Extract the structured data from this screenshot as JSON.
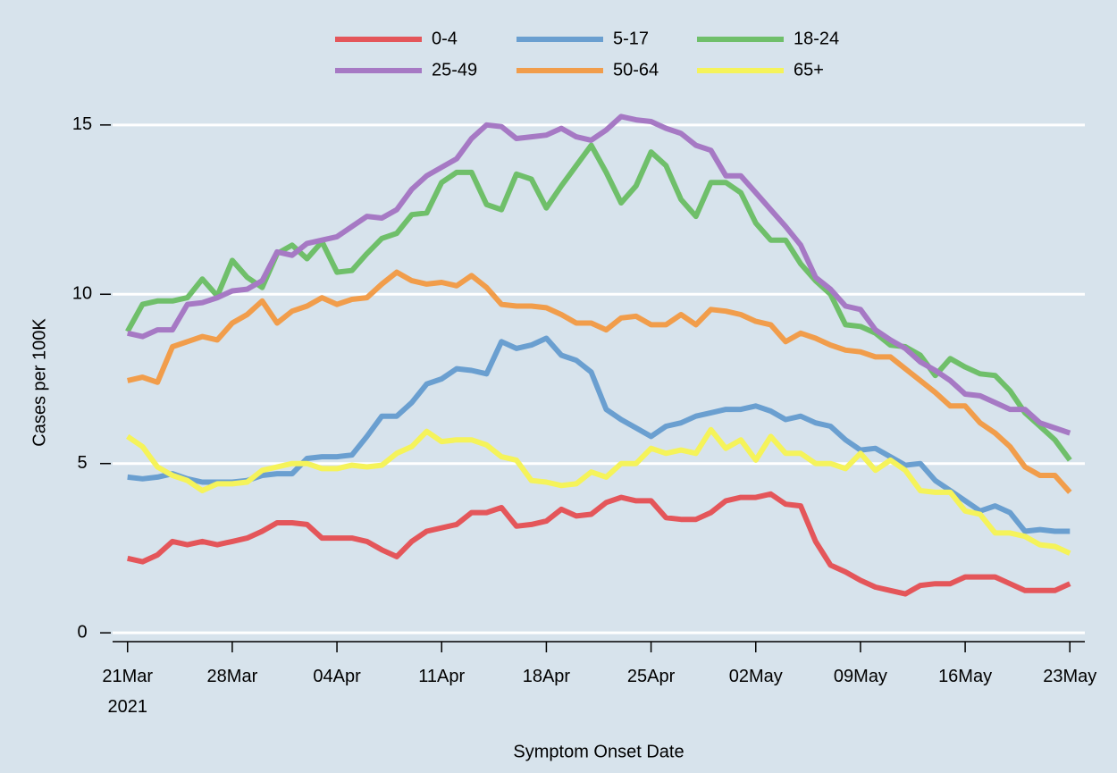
{
  "chart_data": {
    "type": "line",
    "x_label": "Symptom Onset Date",
    "y_label": "Cases per 100K",
    "x": [
      "2021-03-21",
      "2021-03-22",
      "2021-03-23",
      "2021-03-24",
      "2021-03-25",
      "2021-03-26",
      "2021-03-27",
      "2021-03-28",
      "2021-03-29",
      "2021-03-30",
      "2021-03-31",
      "2021-04-01",
      "2021-04-02",
      "2021-04-03",
      "2021-04-04",
      "2021-04-05",
      "2021-04-06",
      "2021-04-07",
      "2021-04-08",
      "2021-04-09",
      "2021-04-10",
      "2021-04-11",
      "2021-04-12",
      "2021-04-13",
      "2021-04-14",
      "2021-04-15",
      "2021-04-16",
      "2021-04-17",
      "2021-04-18",
      "2021-04-19",
      "2021-04-20",
      "2021-04-21",
      "2021-04-22",
      "2021-04-23",
      "2021-04-24",
      "2021-04-25",
      "2021-04-26",
      "2021-04-27",
      "2021-04-28",
      "2021-04-29",
      "2021-04-30",
      "2021-05-01",
      "2021-05-02",
      "2021-05-03",
      "2021-05-04",
      "2021-05-05",
      "2021-05-06",
      "2021-05-07",
      "2021-05-08",
      "2021-05-09",
      "2021-05-10",
      "2021-05-11",
      "2021-05-12",
      "2021-05-13",
      "2021-05-14",
      "2021-05-15",
      "2021-05-16",
      "2021-05-17",
      "2021-05-18",
      "2021-05-19",
      "2021-05-20",
      "2021-05-21",
      "2021-05-22",
      "2021-05-23"
    ],
    "series": [
      {
        "name": "0-4",
        "color": "#e4565a",
        "values": [
          2.2,
          2.1,
          2.3,
          2.7,
          2.6,
          2.7,
          2.6,
          2.7,
          2.8,
          3.0,
          3.25,
          3.25,
          3.2,
          2.8,
          2.8,
          2.8,
          2.7,
          2.45,
          2.25,
          2.7,
          3.0,
          3.1,
          3.2,
          3.55,
          3.55,
          3.7,
          3.15,
          3.2,
          3.3,
          3.65,
          3.45,
          3.5,
          3.85,
          4.0,
          3.9,
          3.9,
          3.4,
          3.35,
          3.35,
          3.55,
          3.9,
          4.0,
          4.0,
          4.1,
          3.8,
          3.75,
          2.7,
          2.0,
          1.8,
          1.55,
          1.35,
          1.25,
          1.15,
          1.4,
          1.45,
          1.45,
          1.65,
          1.65,
          1.65,
          1.45,
          1.25,
          1.25,
          1.25,
          1.45
        ]
      },
      {
        "name": "5-17",
        "color": "#6a9fd0",
        "values": [
          4.6,
          4.55,
          4.6,
          4.7,
          4.55,
          4.45,
          4.45,
          4.45,
          4.5,
          4.65,
          4.7,
          4.7,
          5.15,
          5.2,
          5.2,
          5.25,
          5.8,
          6.4,
          6.4,
          6.8,
          7.35,
          7.5,
          7.8,
          7.75,
          7.65,
          8.6,
          8.4,
          8.5,
          8.7,
          8.2,
          8.05,
          7.7,
          6.6,
          6.3,
          6.05,
          5.8,
          6.1,
          6.2,
          6.4,
          6.5,
          6.6,
          6.6,
          6.7,
          6.55,
          6.3,
          6.4,
          6.2,
          6.1,
          5.7,
          5.4,
          5.45,
          5.2,
          4.95,
          5.0,
          4.5,
          4.2,
          3.9,
          3.6,
          3.75,
          3.55,
          3.0,
          3.05,
          3.0,
          3.0
        ]
      },
      {
        "name": "18-24",
        "color": "#6fbf6a",
        "values": [
          8.9,
          9.7,
          9.8,
          9.8,
          9.9,
          10.45,
          9.95,
          11.0,
          10.5,
          10.2,
          11.2,
          11.45,
          11.05,
          11.55,
          10.65,
          10.7,
          11.2,
          11.65,
          11.8,
          12.35,
          12.4,
          13.3,
          13.6,
          13.6,
          12.65,
          12.5,
          13.55,
          13.4,
          12.55,
          13.2,
          13.8,
          14.4,
          13.6,
          12.7,
          13.2,
          14.2,
          13.8,
          12.8,
          12.3,
          13.3,
          13.3,
          13.0,
          12.1,
          11.6,
          11.6,
          10.9,
          10.4,
          10.0,
          9.1,
          9.05,
          8.85,
          8.5,
          8.45,
          8.2,
          7.6,
          8.1,
          7.85,
          7.65,
          7.6,
          7.15,
          6.5,
          6.1,
          5.7,
          5.1
        ]
      },
      {
        "name": "25-49",
        "color": "#a679c4",
        "values": [
          8.85,
          8.75,
          8.95,
          8.95,
          9.7,
          9.75,
          9.9,
          10.1,
          10.15,
          10.4,
          11.25,
          11.15,
          11.5,
          11.6,
          11.7,
          12.0,
          12.3,
          12.25,
          12.5,
          13.1,
          13.5,
          13.75,
          14.0,
          14.6,
          15.0,
          14.95,
          14.6,
          14.65,
          14.7,
          14.9,
          14.65,
          14.55,
          14.85,
          15.25,
          15.15,
          15.1,
          14.9,
          14.75,
          14.4,
          14.25,
          13.5,
          13.5,
          13.0,
          12.5,
          12.0,
          11.45,
          10.5,
          10.15,
          9.65,
          9.55,
          8.95,
          8.65,
          8.4,
          8.0,
          7.75,
          7.45,
          7.05,
          7.0,
          6.8,
          6.6,
          6.6,
          6.2,
          6.05,
          5.9
        ]
      },
      {
        "name": "50-64",
        "color": "#f19d4b",
        "values": [
          7.45,
          7.55,
          7.4,
          8.45,
          8.6,
          8.75,
          8.65,
          9.15,
          9.4,
          9.8,
          9.15,
          9.5,
          9.65,
          9.9,
          9.7,
          9.85,
          9.9,
          10.3,
          10.65,
          10.4,
          10.3,
          10.35,
          10.25,
          10.55,
          10.2,
          9.7,
          9.65,
          9.65,
          9.6,
          9.4,
          9.15,
          9.15,
          8.95,
          9.3,
          9.35,
          9.1,
          9.1,
          9.4,
          9.1,
          9.55,
          9.5,
          9.4,
          9.2,
          9.1,
          8.6,
          8.85,
          8.7,
          8.5,
          8.35,
          8.3,
          8.15,
          8.15,
          7.8,
          7.45,
          7.1,
          6.7,
          6.7,
          6.2,
          5.9,
          5.5,
          4.9,
          4.65,
          4.65,
          4.15
        ]
      },
      {
        "name": "65+",
        "color": "#f5f35a",
        "values": [
          5.8,
          5.5,
          4.9,
          4.65,
          4.5,
          4.2,
          4.4,
          4.4,
          4.45,
          4.8,
          4.9,
          5.0,
          5.0,
          4.85,
          4.85,
          4.95,
          4.9,
          4.95,
          5.3,
          5.5,
          5.95,
          5.65,
          5.7,
          5.7,
          5.55,
          5.2,
          5.1,
          4.5,
          4.45,
          4.35,
          4.4,
          4.75,
          4.6,
          5.0,
          5.0,
          5.45,
          5.3,
          5.4,
          5.3,
          6.0,
          5.45,
          5.7,
          5.1,
          5.8,
          5.3,
          5.3,
          5.0,
          5.0,
          4.85,
          5.3,
          4.8,
          5.1,
          4.8,
          4.2,
          4.15,
          4.15,
          3.6,
          3.5,
          2.95,
          2.95,
          2.85,
          2.6,
          2.55,
          2.35
        ]
      }
    ],
    "xlim": [
      "2021-03-20",
      "2021-05-24"
    ],
    "xticks": [
      {
        "value": "2021-03-21",
        "label": "21Mar 2021"
      },
      {
        "value": "2021-03-28",
        "label": "28Mar"
      },
      {
        "value": "2021-04-04",
        "label": "04Apr"
      },
      {
        "value": "2021-04-11",
        "label": "11Apr"
      },
      {
        "value": "2021-04-18",
        "label": "18Apr"
      },
      {
        "value": "2021-04-25",
        "label": "25Apr"
      },
      {
        "value": "2021-05-02",
        "label": "02May"
      },
      {
        "value": "2021-05-09",
        "label": "09May"
      },
      {
        "value": "2021-05-16",
        "label": "16May"
      },
      {
        "value": "2021-05-23",
        "label": "23May"
      }
    ],
    "ylim": [
      -0.26,
      16.5
    ],
    "yticks": [
      0,
      5,
      10,
      15
    ],
    "grid": true,
    "legend": "top"
  }
}
